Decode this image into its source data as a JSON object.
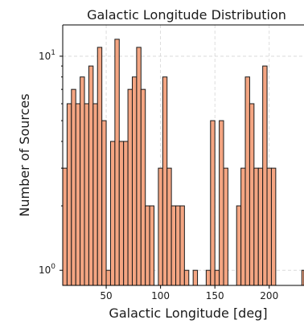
{
  "chart_data": {
    "type": "bar",
    "title": "Galactic Longitude Distribution",
    "xlabel": "Galactic Longitude [deg]",
    "ylabel": "Number of Sources",
    "y_scale": "log",
    "xlim": [
      10,
      232
    ],
    "ylim": [
      0.85,
      14
    ],
    "x_ticks": [
      50,
      100,
      150,
      200
    ],
    "y_ticks": [
      {
        "value": 1,
        "base": "10",
        "exp": "0"
      },
      {
        "value": 10,
        "base": "10",
        "exp": "1"
      }
    ],
    "grid": true,
    "bin_width": 4,
    "bin_start": 10,
    "values": [
      3,
      6,
      7,
      6,
      8,
      6,
      9,
      6,
      11,
      5,
      1,
      4,
      12,
      4,
      4,
      7,
      8,
      11,
      7,
      2,
      2,
      0,
      3,
      8,
      3,
      2,
      2,
      2,
      1,
      0,
      1,
      0,
      0,
      1,
      5,
      1,
      5,
      3,
      0,
      0,
      2,
      3,
      8,
      6,
      3,
      3,
      9,
      3,
      3,
      0,
      0,
      0,
      0,
      0,
      0,
      1
    ],
    "bar_color": "#f4a582",
    "edge_color": "#1a1a1a"
  }
}
